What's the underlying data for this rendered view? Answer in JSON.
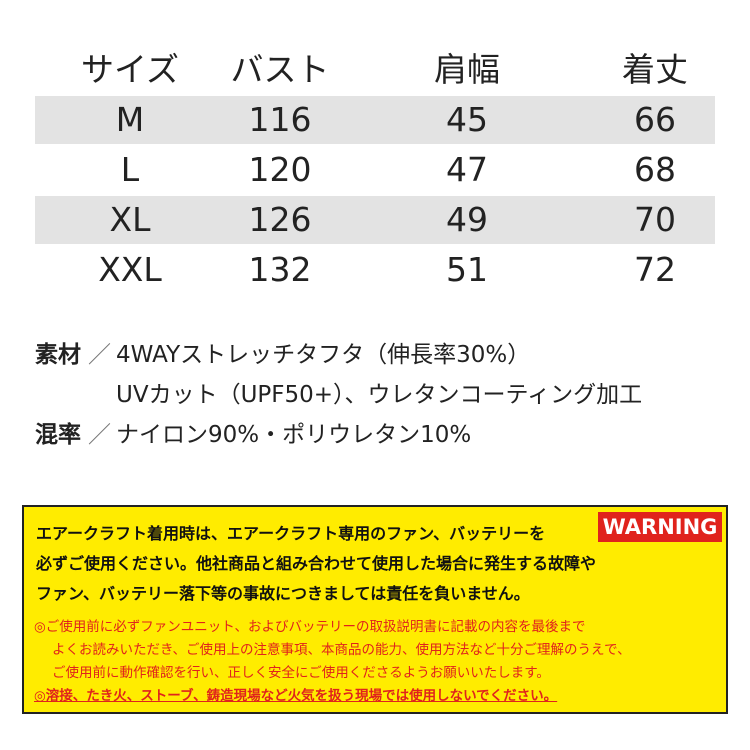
{
  "table": {
    "header": [
      "サイズ",
      "バスト",
      "肩幅",
      "着丈"
    ],
    "rows": [
      [
        "M",
        "116",
        "45",
        "66"
      ],
      [
        "L",
        "120",
        "47",
        "68"
      ],
      [
        "XL",
        "126",
        "49",
        "70"
      ],
      [
        "XXL",
        "132",
        "51",
        "72"
      ]
    ]
  },
  "materials": [
    {
      "label": "素材",
      "separator": "／",
      "lines": [
        "4WAYストレッチタフタ（伸長率30%）",
        "UVカット（UPF50+）、ウレタンコーティング加工"
      ]
    },
    {
      "label": "混率",
      "separator": "／",
      "lines": [
        "ナイロン90%・ポリウレタン10%"
      ]
    }
  ],
  "warning": {
    "badge": "WARNING",
    "notice": [
      "エアークラフト着用時は、エアークラフト専用のファン、バッテリーを",
      "必ずご使用ください。他社商品と組み合わせて使用した場合に発生する故障や",
      "ファン、バッテリー落下等の事故につきましては責任を負いません。"
    ],
    "cautions": [
      "◎ご使用前に必ずファンユニット、およびバッテリーの取扱説明書に記載の内容を最後まで",
      "よくお読みいただき、ご使用上の注意事項、本商品の能力、使用方法など十分ご理解のうえで、",
      "ご使用前に動作確認を行い、正しく安全にご使用くださるようお願いいたします。",
      "◎溶接、たき火、ストーブ、鋳造現場など火気を扱う現場では使用しないでください。"
    ]
  }
}
